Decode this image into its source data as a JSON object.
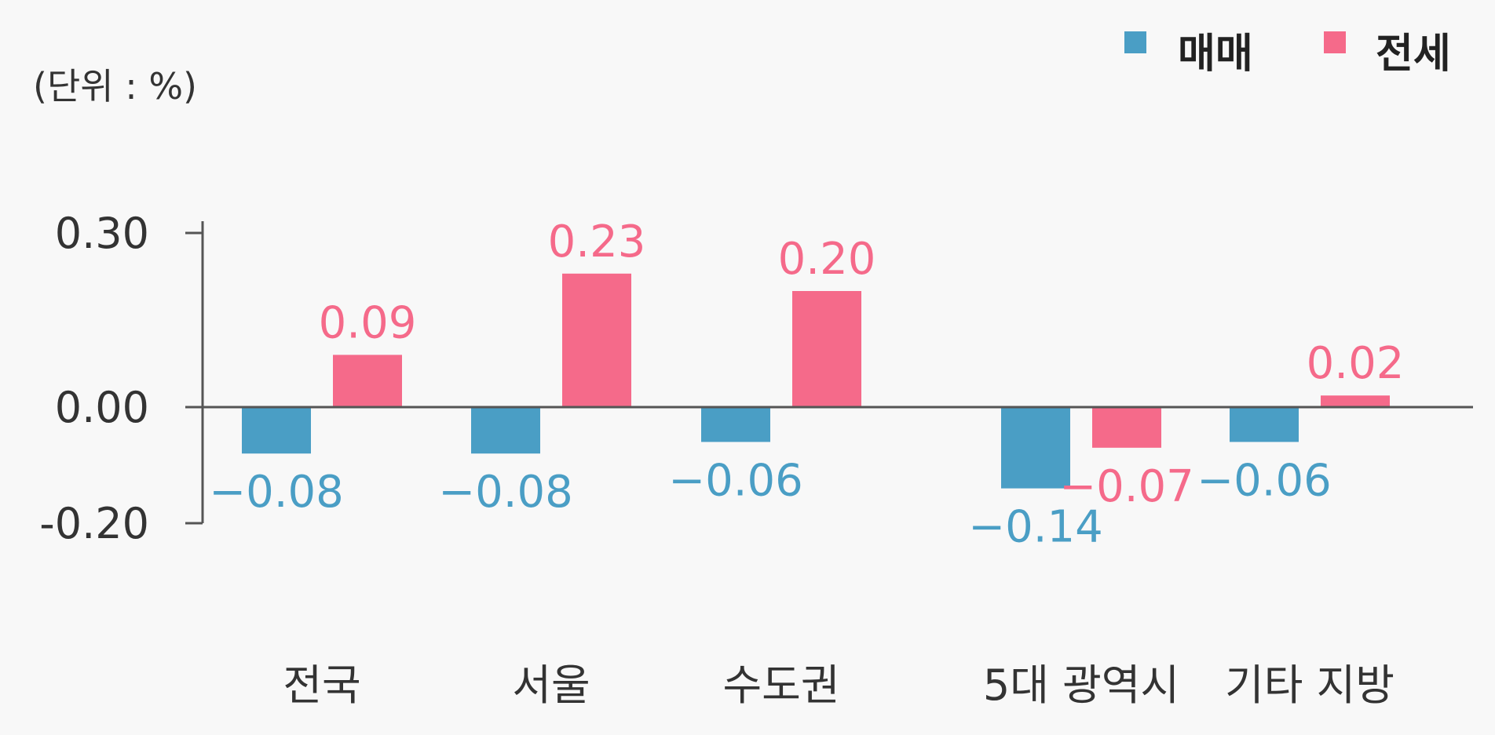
{
  "chart_data": {
    "type": "bar",
    "unit_label": "(단위 : %)",
    "categories": [
      "전국",
      "서울",
      "수도권",
      "5대 광역시",
      "기타 지방"
    ],
    "series": [
      {
        "name": "매매",
        "color": "#4a9ec5",
        "values": [
          -0.08,
          -0.08,
          -0.06,
          -0.14,
          -0.06
        ],
        "labels": [
          "−0.08",
          "−0.08",
          "−0.06",
          "−0.14",
          "−0.06"
        ]
      },
      {
        "name": "전세",
        "color": "#f56a8a",
        "values": [
          0.09,
          0.23,
          0.2,
          -0.07,
          0.02
        ],
        "labels": [
          "0.09",
          "0.23",
          "0.20",
          "−0.07",
          "0.02"
        ]
      }
    ],
    "y_ticks": [
      {
        "value": 0.3,
        "label": "0.30"
      },
      {
        "value": 0.0,
        "label": "0.00"
      },
      {
        "value": -0.2,
        "label": "-0.20"
      }
    ],
    "ylim": [
      -0.2,
      0.3
    ],
    "legend_position": "top-right",
    "grid": false,
    "axis_color": "#555555",
    "label_color": "#333333"
  }
}
